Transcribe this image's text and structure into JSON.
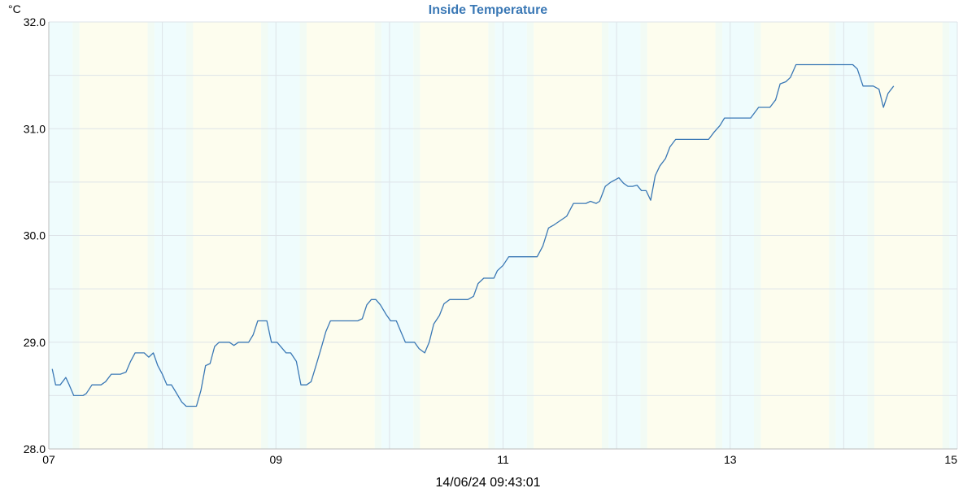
{
  "chart_data": {
    "type": "line",
    "title": "Inside Temperature",
    "unit_label": "°C",
    "timestamp": "14/06/24 09:43:01",
    "xlim": [
      7.0,
      15.0
    ],
    "ylim": [
      28.0,
      32.0
    ],
    "grid": true,
    "x_ticks": [
      {
        "value": 7,
        "label": "07"
      },
      {
        "value": 9,
        "label": "09"
      },
      {
        "value": 11,
        "label": "11"
      },
      {
        "value": 13,
        "label": "13"
      },
      {
        "value": 15,
        "label": "15"
      }
    ],
    "x_minor_gridlines": [
      8,
      10,
      12,
      14
    ],
    "y_ticks": [
      {
        "value": 28.0,
        "label": "28.0"
      },
      {
        "value": 29.0,
        "label": "29.0"
      },
      {
        "value": 30.0,
        "label": "30.0"
      },
      {
        "value": 31.0,
        "label": "31.0"
      },
      {
        "value": 32.0,
        "label": "32.0"
      }
    ],
    "y_minor_gridlines": [
      28.5,
      29.5,
      30.5,
      31.5
    ],
    "colors": {
      "line": "#3a78b5",
      "night_band": "#effcfd",
      "day_band": "#fdfdee",
      "transition_band": "#f2fbf4",
      "grid": "#dde3e8",
      "axis": "#bbbbbb",
      "title": "#3a78b5"
    },
    "background_bands": [
      {
        "start": 7.0,
        "end": 7.21,
        "kind": "night"
      },
      {
        "start": 7.21,
        "end": 7.27,
        "kind": "transition"
      },
      {
        "start": 7.27,
        "end": 7.87,
        "kind": "day"
      },
      {
        "start": 7.87,
        "end": 7.93,
        "kind": "transition"
      },
      {
        "start": 7.93,
        "end": 8.21,
        "kind": "night"
      },
      {
        "start": 8.21,
        "end": 8.27,
        "kind": "transition"
      },
      {
        "start": 8.27,
        "end": 8.87,
        "kind": "day"
      },
      {
        "start": 8.87,
        "end": 8.93,
        "kind": "transition"
      },
      {
        "start": 8.93,
        "end": 9.21,
        "kind": "night"
      },
      {
        "start": 9.21,
        "end": 9.27,
        "kind": "transition"
      },
      {
        "start": 9.27,
        "end": 9.87,
        "kind": "day"
      },
      {
        "start": 9.87,
        "end": 9.93,
        "kind": "transition"
      },
      {
        "start": 9.93,
        "end": 10.21,
        "kind": "night"
      },
      {
        "start": 10.21,
        "end": 10.27,
        "kind": "transition"
      },
      {
        "start": 10.27,
        "end": 10.87,
        "kind": "day"
      },
      {
        "start": 10.87,
        "end": 10.93,
        "kind": "transition"
      },
      {
        "start": 10.93,
        "end": 11.21,
        "kind": "night"
      },
      {
        "start": 11.21,
        "end": 11.27,
        "kind": "transition"
      },
      {
        "start": 11.27,
        "end": 11.87,
        "kind": "day"
      },
      {
        "start": 11.87,
        "end": 11.93,
        "kind": "transition"
      },
      {
        "start": 11.93,
        "end": 12.21,
        "kind": "night"
      },
      {
        "start": 12.21,
        "end": 12.27,
        "kind": "transition"
      },
      {
        "start": 12.27,
        "end": 12.87,
        "kind": "day"
      },
      {
        "start": 12.87,
        "end": 12.93,
        "kind": "transition"
      },
      {
        "start": 12.93,
        "end": 13.21,
        "kind": "night"
      },
      {
        "start": 13.21,
        "end": 13.27,
        "kind": "transition"
      },
      {
        "start": 13.27,
        "end": 13.87,
        "kind": "day"
      },
      {
        "start": 13.87,
        "end": 13.93,
        "kind": "transition"
      },
      {
        "start": 13.93,
        "end": 14.21,
        "kind": "night"
      },
      {
        "start": 14.21,
        "end": 14.27,
        "kind": "transition"
      },
      {
        "start": 14.27,
        "end": 14.87,
        "kind": "day"
      },
      {
        "start": 14.87,
        "end": 14.93,
        "kind": "transition"
      },
      {
        "start": 14.93,
        "end": 15.0,
        "kind": "night"
      }
    ],
    "series": [
      {
        "values_xy": [
          [
            7.03,
            28.75
          ],
          [
            7.06,
            28.6
          ],
          [
            7.1,
            28.6
          ],
          [
            7.15,
            28.67
          ],
          [
            7.18,
            28.6
          ],
          [
            7.22,
            28.5
          ],
          [
            7.3,
            28.5
          ],
          [
            7.33,
            28.52
          ],
          [
            7.38,
            28.6
          ],
          [
            7.46,
            28.6
          ],
          [
            7.5,
            28.63
          ],
          [
            7.55,
            28.7
          ],
          [
            7.63,
            28.7
          ],
          [
            7.68,
            28.72
          ],
          [
            7.72,
            28.82
          ],
          [
            7.76,
            28.9
          ],
          [
            7.84,
            28.9
          ],
          [
            7.88,
            28.86
          ],
          [
            7.92,
            28.9
          ],
          [
            7.96,
            28.78
          ],
          [
            8.0,
            28.7
          ],
          [
            8.04,
            28.6
          ],
          [
            8.08,
            28.6
          ],
          [
            8.12,
            28.53
          ],
          [
            8.17,
            28.44
          ],
          [
            8.21,
            28.4
          ],
          [
            8.3,
            28.4
          ],
          [
            8.34,
            28.55
          ],
          [
            8.38,
            28.78
          ],
          [
            8.42,
            28.8
          ],
          [
            8.46,
            28.96
          ],
          [
            8.5,
            29.0
          ],
          [
            8.59,
            29.0
          ],
          [
            8.63,
            28.97
          ],
          [
            8.67,
            29.0
          ],
          [
            8.76,
            29.0
          ],
          [
            8.8,
            29.07
          ],
          [
            8.84,
            29.2
          ],
          [
            8.92,
            29.2
          ],
          [
            8.96,
            29.0
          ],
          [
            9.01,
            29.0
          ],
          [
            9.09,
            28.9
          ],
          [
            9.13,
            28.9
          ],
          [
            9.18,
            28.82
          ],
          [
            9.22,
            28.6
          ],
          [
            9.27,
            28.6
          ],
          [
            9.31,
            28.63
          ],
          [
            9.35,
            28.77
          ],
          [
            9.4,
            28.95
          ],
          [
            9.44,
            29.1
          ],
          [
            9.48,
            29.2
          ],
          [
            9.72,
            29.2
          ],
          [
            9.76,
            29.22
          ],
          [
            9.8,
            29.35
          ],
          [
            9.84,
            29.4
          ],
          [
            9.88,
            29.4
          ],
          [
            9.92,
            29.35
          ],
          [
            9.97,
            29.26
          ],
          [
            10.01,
            29.2
          ],
          [
            10.06,
            29.2
          ],
          [
            10.1,
            29.1
          ],
          [
            10.14,
            29.0
          ],
          [
            10.22,
            29.0
          ],
          [
            10.26,
            28.94
          ],
          [
            10.31,
            28.9
          ],
          [
            10.35,
            29.0
          ],
          [
            10.39,
            29.17
          ],
          [
            10.44,
            29.25
          ],
          [
            10.48,
            29.36
          ],
          [
            10.53,
            29.4
          ],
          [
            10.69,
            29.4
          ],
          [
            10.74,
            29.43
          ],
          [
            10.78,
            29.55
          ],
          [
            10.83,
            29.6
          ],
          [
            10.92,
            29.6
          ],
          [
            10.95,
            29.67
          ],
          [
            11.0,
            29.72
          ],
          [
            11.05,
            29.8
          ],
          [
            11.3,
            29.8
          ],
          [
            11.35,
            29.9
          ],
          [
            11.4,
            30.07
          ],
          [
            11.45,
            30.1
          ],
          [
            11.56,
            30.18
          ],
          [
            11.62,
            30.3
          ],
          [
            11.73,
            30.3
          ],
          [
            11.77,
            30.32
          ],
          [
            11.82,
            30.3
          ],
          [
            11.85,
            30.32
          ],
          [
            11.9,
            30.46
          ],
          [
            11.95,
            30.5
          ],
          [
            12.02,
            30.54
          ],
          [
            12.06,
            30.49
          ],
          [
            12.1,
            30.46
          ],
          [
            12.14,
            30.46
          ],
          [
            12.18,
            30.47
          ],
          [
            12.22,
            30.42
          ],
          [
            12.26,
            30.42
          ],
          [
            12.3,
            30.33
          ],
          [
            12.34,
            30.56
          ],
          [
            12.38,
            30.65
          ],
          [
            12.43,
            30.72
          ],
          [
            12.47,
            30.83
          ],
          [
            12.52,
            30.9
          ],
          [
            12.81,
            30.9
          ],
          [
            12.86,
            30.97
          ],
          [
            12.91,
            31.03
          ],
          [
            12.95,
            31.1
          ],
          [
            13.18,
            31.1
          ],
          [
            13.25,
            31.2
          ],
          [
            13.35,
            31.2
          ],
          [
            13.4,
            31.27
          ],
          [
            13.44,
            31.42
          ],
          [
            13.49,
            31.44
          ],
          [
            13.53,
            31.48
          ],
          [
            13.58,
            31.6
          ],
          [
            14.08,
            31.6
          ],
          [
            14.12,
            31.56
          ],
          [
            14.17,
            31.4
          ],
          [
            14.26,
            31.4
          ],
          [
            14.31,
            31.37
          ],
          [
            14.35,
            31.2
          ],
          [
            14.39,
            31.33
          ],
          [
            14.44,
            31.4
          ]
        ]
      }
    ]
  }
}
